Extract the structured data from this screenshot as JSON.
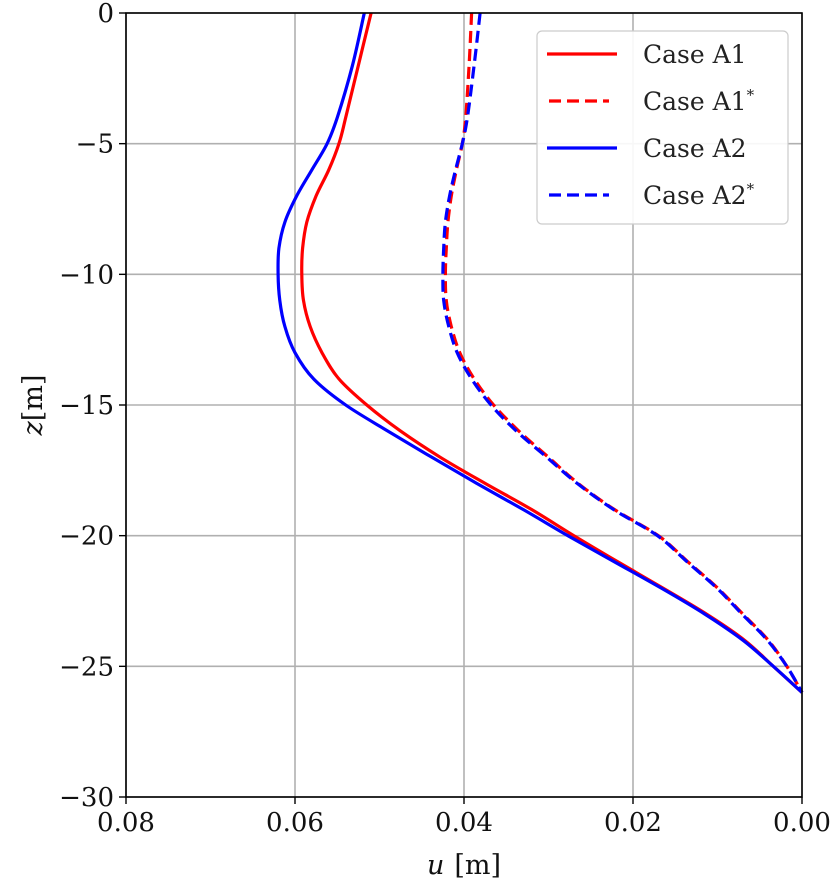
{
  "chart_data": {
    "type": "line",
    "title": "",
    "xlabel": "u [m]",
    "ylabel": "z [m]",
    "xlim": [
      0.08,
      0.0
    ],
    "ylim": [
      -30,
      0
    ],
    "x_inverted": true,
    "grid": true,
    "legend_position": "upper right",
    "xticks": [
      "0.08",
      "0.06",
      "0.04",
      "0.02",
      "0.00"
    ],
    "xtick_values": [
      0.08,
      0.06,
      0.04,
      0.02,
      0.0
    ],
    "yticks": [
      "0",
      "−5",
      "−10",
      "−15",
      "−20",
      "−25",
      "−30"
    ],
    "ytick_values": [
      0,
      -5,
      -10,
      -15,
      -20,
      -25,
      -30
    ],
    "series": [
      {
        "name": "Case A1",
        "color": "#ff0000",
        "style": "solid",
        "z": [
          0,
          -2,
          -4,
          -5,
          -6,
          -7,
          -8,
          -9,
          -10,
          -11,
          -12,
          -13,
          -14,
          -15,
          -16,
          -17,
          -18,
          -19,
          -20,
          -21,
          -22,
          -23,
          -24,
          -25,
          -26
        ],
        "u": [
          0.051,
          0.0525,
          0.054,
          0.0548,
          0.056,
          0.0575,
          0.0586,
          0.0591,
          0.0592,
          0.059,
          0.0582,
          0.0568,
          0.0548,
          0.0515,
          0.0475,
          0.0428,
          0.0375,
          0.032,
          0.027,
          0.0218,
          0.0165,
          0.0113,
          0.0068,
          0.0034,
          0.0
        ]
      },
      {
        "name": "Case A1*",
        "color": "#ff0000",
        "style": "dashed",
        "z": [
          0,
          -2,
          -4,
          -5,
          -6,
          -7,
          -8,
          -9,
          -10,
          -11,
          -12,
          -13,
          -14,
          -15,
          -16,
          -17,
          -18,
          -19,
          -20,
          -21,
          -22,
          -23,
          -24,
          -25,
          -26
        ],
        "u": [
          0.0391,
          0.0394,
          0.0398,
          0.0402,
          0.0409,
          0.0415,
          0.0419,
          0.0421,
          0.0422,
          0.0421,
          0.0415,
          0.0405,
          0.0388,
          0.0365,
          0.0335,
          0.03,
          0.0265,
          0.0222,
          0.017,
          0.0135,
          0.01,
          0.007,
          0.004,
          0.0018,
          0.0
        ]
      },
      {
        "name": "Case A2",
        "color": "#0000ff",
        "style": "solid",
        "z": [
          0,
          -2,
          -4,
          -5,
          -6,
          -7,
          -8,
          -9,
          -10,
          -11,
          -12,
          -13,
          -14,
          -15,
          -16,
          -17,
          -18,
          -19,
          -20,
          -21,
          -22,
          -23,
          -24,
          -25,
          -26
        ],
        "u": [
          0.0518,
          0.0532,
          0.055,
          0.0562,
          0.058,
          0.0598,
          0.0612,
          0.0619,
          0.062,
          0.0618,
          0.0612,
          0.06,
          0.0578,
          0.054,
          0.049,
          0.0438,
          0.0385,
          0.033,
          0.0277,
          0.0222,
          0.0167,
          0.0115,
          0.007,
          0.0034,
          0.0
        ]
      },
      {
        "name": "Case A2*",
        "color": "#0000ff",
        "style": "dashed",
        "z": [
          0,
          -2,
          -4,
          -5,
          -6,
          -7,
          -8,
          -9,
          -10,
          -11,
          -12,
          -13,
          -14,
          -15,
          -16,
          -17,
          -18,
          -19,
          -20,
          -21,
          -22,
          -23,
          -24,
          -25,
          -26
        ],
        "u": [
          0.0381,
          0.0388,
          0.0396,
          0.0402,
          0.041,
          0.0417,
          0.0422,
          0.0424,
          0.0425,
          0.0424,
          0.0418,
          0.0408,
          0.0391,
          0.0368,
          0.0338,
          0.0302,
          0.0266,
          0.0223,
          0.0171,
          0.0136,
          0.0101,
          0.0071,
          0.0041,
          0.0018,
          0.0
        ]
      }
    ]
  },
  "axes": {
    "x_label_var": "u",
    "x_label_unit": "[m]",
    "y_label_var": "z",
    "y_label_unit": "[m]"
  },
  "legend": {
    "items": [
      {
        "label": "Case A1",
        "sup": "",
        "color": "#ff0000",
        "style": "solid"
      },
      {
        "label": "Case A1",
        "sup": "*",
        "color": "#ff0000",
        "style": "dashed"
      },
      {
        "label": "Case A2",
        "sup": "",
        "color": "#0000ff",
        "style": "solid"
      },
      {
        "label": "Case A2",
        "sup": "*",
        "color": "#0000ff",
        "style": "dashed"
      }
    ]
  },
  "colors": {
    "grid": "#b0b0b0",
    "axis": "#000000",
    "legend_border": "#cccccc"
  }
}
